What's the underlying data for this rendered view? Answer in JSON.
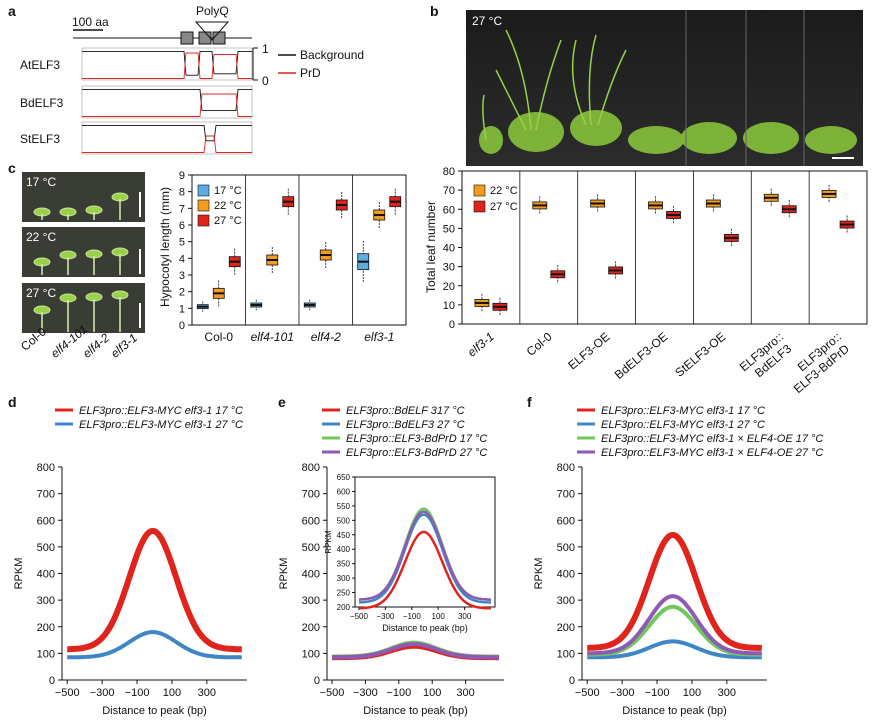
{
  "panels": {
    "a": "a",
    "b": "b",
    "c": "c",
    "d": "d",
    "e": "e",
    "f": "f"
  },
  "panel_a": {
    "scale_label": "100 aa",
    "polyq_label": "PolyQ",
    "rows": [
      "AtELF3",
      "BdELF3",
      "StELF3"
    ],
    "axis_top": "1",
    "axis_bottom": "0",
    "legend": [
      {
        "name": "Background",
        "color": "#111111"
      },
      {
        "name": "PrD",
        "color": "#e0241c"
      }
    ]
  },
  "panel_b": {
    "photo_label": "27 °C",
    "chart_data": {
      "type": "box",
      "ylabel": "Total leaf number",
      "ylim": [
        0,
        80
      ],
      "yticks": [
        0,
        10,
        20,
        30,
        40,
        50,
        60,
        70,
        80
      ],
      "legend": [
        {
          "name": "22 °C",
          "color": "#f39c1e"
        },
        {
          "name": "27 °C",
          "color": "#e0241c"
        }
      ],
      "categories": [
        "elf3-1",
        "Col-0",
        "ELF3-OE",
        "BdELF3-OE",
        "StELF3-OE",
        "ELF3pro::\nBdELF3",
        "ELF3pro::\nELF3-BdPrD"
      ],
      "category_labels": [
        {
          "line1": "elf3-1",
          "italic": true
        },
        {
          "line1": "Col-0"
        },
        {
          "line1": "ELF3-OE"
        },
        {
          "line1": "BdELF3-OE"
        },
        {
          "line1": "StELF3-OE"
        },
        {
          "line1": "ELF3pro::",
          "line2": "BdELF3"
        },
        {
          "line1": "ELF3pro::",
          "line2": "ELF3-BdPrD"
        }
      ],
      "series": [
        {
          "name": "22 °C",
          "medians": [
            11,
            62,
            63,
            62,
            63,
            66,
            68
          ]
        },
        {
          "name": "27 °C",
          "medians": [
            9,
            26,
            28,
            57,
            45,
            60,
            52
          ]
        }
      ]
    }
  },
  "panel_c": {
    "photo_labels": [
      "17 °C",
      "22 °C",
      "27 °C"
    ],
    "photo_x_labels": [
      "Col-0",
      "elf4-101",
      "elf4-2",
      "elf3-1"
    ],
    "chart_data": {
      "type": "box",
      "ylabel": "Hypocotyl length (mm)",
      "ylim": [
        0,
        9
      ],
      "yticks": [
        0,
        1,
        2,
        3,
        4,
        5,
        6,
        7,
        8,
        9
      ],
      "categories": [
        "Col-0",
        "elf4-101",
        "elf4-2",
        "elf3-1"
      ],
      "legend": [
        {
          "name": "17 °C",
          "color": "#5dade2"
        },
        {
          "name": "22 °C",
          "color": "#f39c1e"
        },
        {
          "name": "27 °C",
          "color": "#e0241c"
        }
      ],
      "series": [
        {
          "name": "17 °C",
          "medians": [
            1.1,
            1.2,
            1.2,
            3.8
          ]
        },
        {
          "name": "22 °C",
          "medians": [
            1.9,
            3.9,
            4.2,
            6.6
          ]
        },
        {
          "name": "27 °C",
          "medians": [
            3.8,
            7.4,
            7.2,
            7.4
          ]
        }
      ]
    }
  },
  "panel_d": {
    "chart_data": {
      "type": "line",
      "xlabel": "Distance to peak (bp)",
      "ylabel": "RPKM",
      "xticks": [
        -500,
        -300,
        -100,
        100,
        300
      ],
      "yticks": [
        0,
        100,
        200,
        300,
        400,
        500,
        600,
        700,
        800
      ],
      "ylim": [
        0,
        800
      ],
      "series": [
        {
          "name": "ELF3pro::ELF3-MYC elf3-1 17 °C",
          "color": "#e0241c",
          "peak": 560,
          "base": 115
        },
        {
          "name": "ELF3pro::ELF3-MYC elf3-1 27 °C",
          "color": "#3f86c6",
          "peak": 180,
          "base": 85
        }
      ]
    }
  },
  "panel_e": {
    "chart_data": {
      "type": "line",
      "xlabel": "Distance to peak (bp)",
      "ylabel": "RPKM",
      "xticks": [
        -500,
        -300,
        -100,
        100,
        300
      ],
      "yticks": [
        0,
        100,
        200,
        300,
        400,
        500,
        600,
        700,
        800
      ],
      "ylim": [
        0,
        800
      ],
      "series": [
        {
          "name": "ELF3pro::BdELF 317 °C",
          "color": "#e0241c",
          "peak": 125,
          "base": 82
        },
        {
          "name": "ELF3pro::BdELF3 27 °C",
          "color": "#3f86c6",
          "peak": 140,
          "base": 85
        },
        {
          "name": "ELF3pro::ELF3-BdPrD 17 °C",
          "color": "#6ec95a",
          "peak": 140,
          "base": 88
        },
        {
          "name": "ELF3pro::ELF3-BdPrD 27 °C",
          "color": "#8e5ab5",
          "peak": 135,
          "base": 86
        }
      ],
      "inset": {
        "xlabel": "Distance to peak (bp)",
        "ylabel": "RPKM",
        "xticks": [
          -500,
          -300,
          -100,
          100,
          300
        ],
        "yticks": [
          200,
          250,
          300,
          350,
          400,
          450,
          500,
          550,
          600,
          650
        ],
        "ylim": [
          200,
          650
        ],
        "peaks": [
          460,
          520,
          540,
          530
        ],
        "bases": [
          195,
          215,
          225,
          225
        ]
      }
    }
  },
  "panel_f": {
    "chart_data": {
      "type": "line",
      "xlabel": "Distance to peak (bp)",
      "ylabel": "RPKM",
      "xticks": [
        -500,
        -300,
        -100,
        100,
        300
      ],
      "yticks": [
        0,
        100,
        200,
        300,
        400,
        500,
        600,
        700,
        800
      ],
      "ylim": [
        0,
        800
      ],
      "series": [
        {
          "name": "ELF3pro::ELF3-MYC elf3-1 17 °C",
          "color": "#e0241c",
          "peak": 545,
          "base": 120
        },
        {
          "name": "ELF3pro::ELF3-MYC elf3-1 27 °C",
          "color": "#3f86c6",
          "peak": 145,
          "base": 85
        },
        {
          "name": "ELF3pro::ELF3-MYC elf3-1 × ELF4-OE 17 °C",
          "color": "#6ec95a",
          "peak": 275,
          "base": 95
        },
        {
          "name": "ELF3pro::ELF3-MYC elf3-1 × ELF4-OE 27 °C",
          "color": "#8e5ab5",
          "peak": 315,
          "base": 100
        }
      ]
    }
  }
}
